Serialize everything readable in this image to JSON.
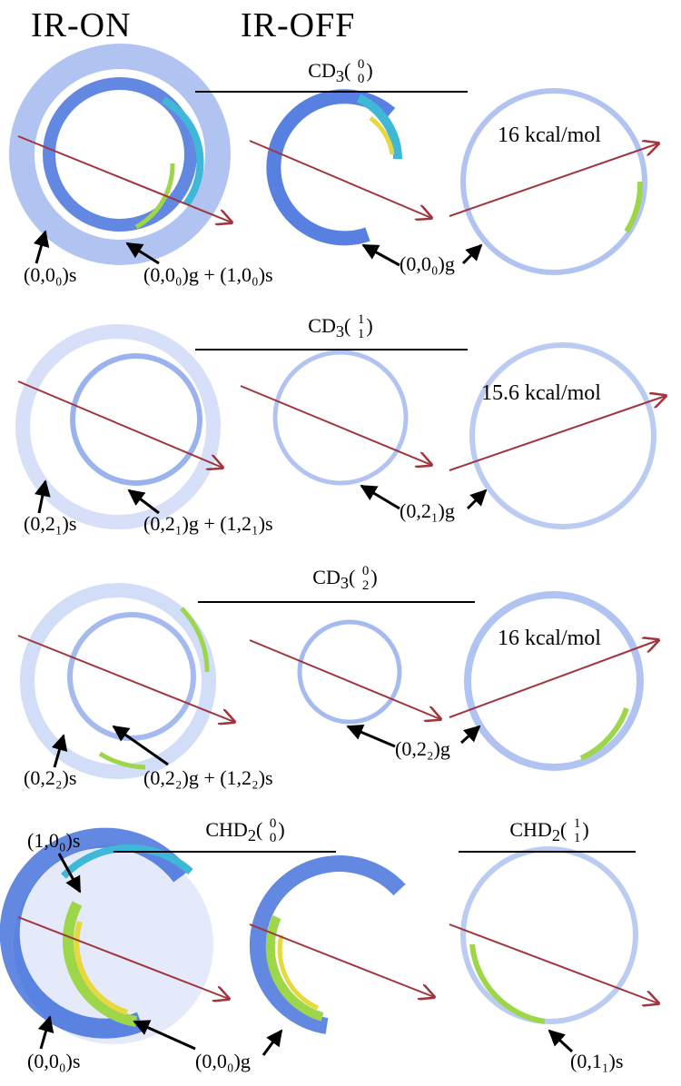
{
  "headers": {
    "ir_on": "IR-ON",
    "ir_off": "IR-OFF"
  },
  "colors": {
    "arrow_red": "#a0353d",
    "ring_blue": "#1f55d6",
    "ring_cyan": "#3fb8d8",
    "ring_green": "#9ed64a",
    "ring_yellow": "#e8d840"
  },
  "rows": [
    {
      "title": {
        "prefix": "CD",
        "sub": "3",
        "sup_top": "0",
        "sup_bot": "0"
      },
      "energy": "16 kcal/mol",
      "labels": [
        "(0,0₀)s",
        "(0,0₀)g + (1,0₀)s",
        "(0,0₀)g"
      ]
    },
    {
      "title": {
        "prefix": "CD",
        "sub": "3",
        "sup_top": "1",
        "sup_bot": "1"
      },
      "energy": "15.6 kcal/mol",
      "labels": [
        "(0,2₁)s",
        "(0,2₁)g + (1,2₁)s",
        "(0,2₁)g"
      ]
    },
    {
      "title": {
        "prefix": "CD",
        "sub": "3",
        "sup_top": "0",
        "sup_bot": "2"
      },
      "energy": "16 kcal/mol",
      "labels": [
        "(0,2₂)s",
        "(0,2₂)g + (1,2₂)s",
        "(0,2₂)g"
      ]
    },
    {
      "title": {
        "prefix": "CHD",
        "sub": "2",
        "sup_top": "0",
        "sup_bot": "0"
      },
      "title2": {
        "prefix": "CHD",
        "sub": "2",
        "sup_top": "1",
        "sup_bot": "1"
      },
      "labels": [
        "(1,0₀)s",
        "(0,0₀)s",
        "(0,0₀)g",
        "(0,1₁)s"
      ]
    }
  ]
}
